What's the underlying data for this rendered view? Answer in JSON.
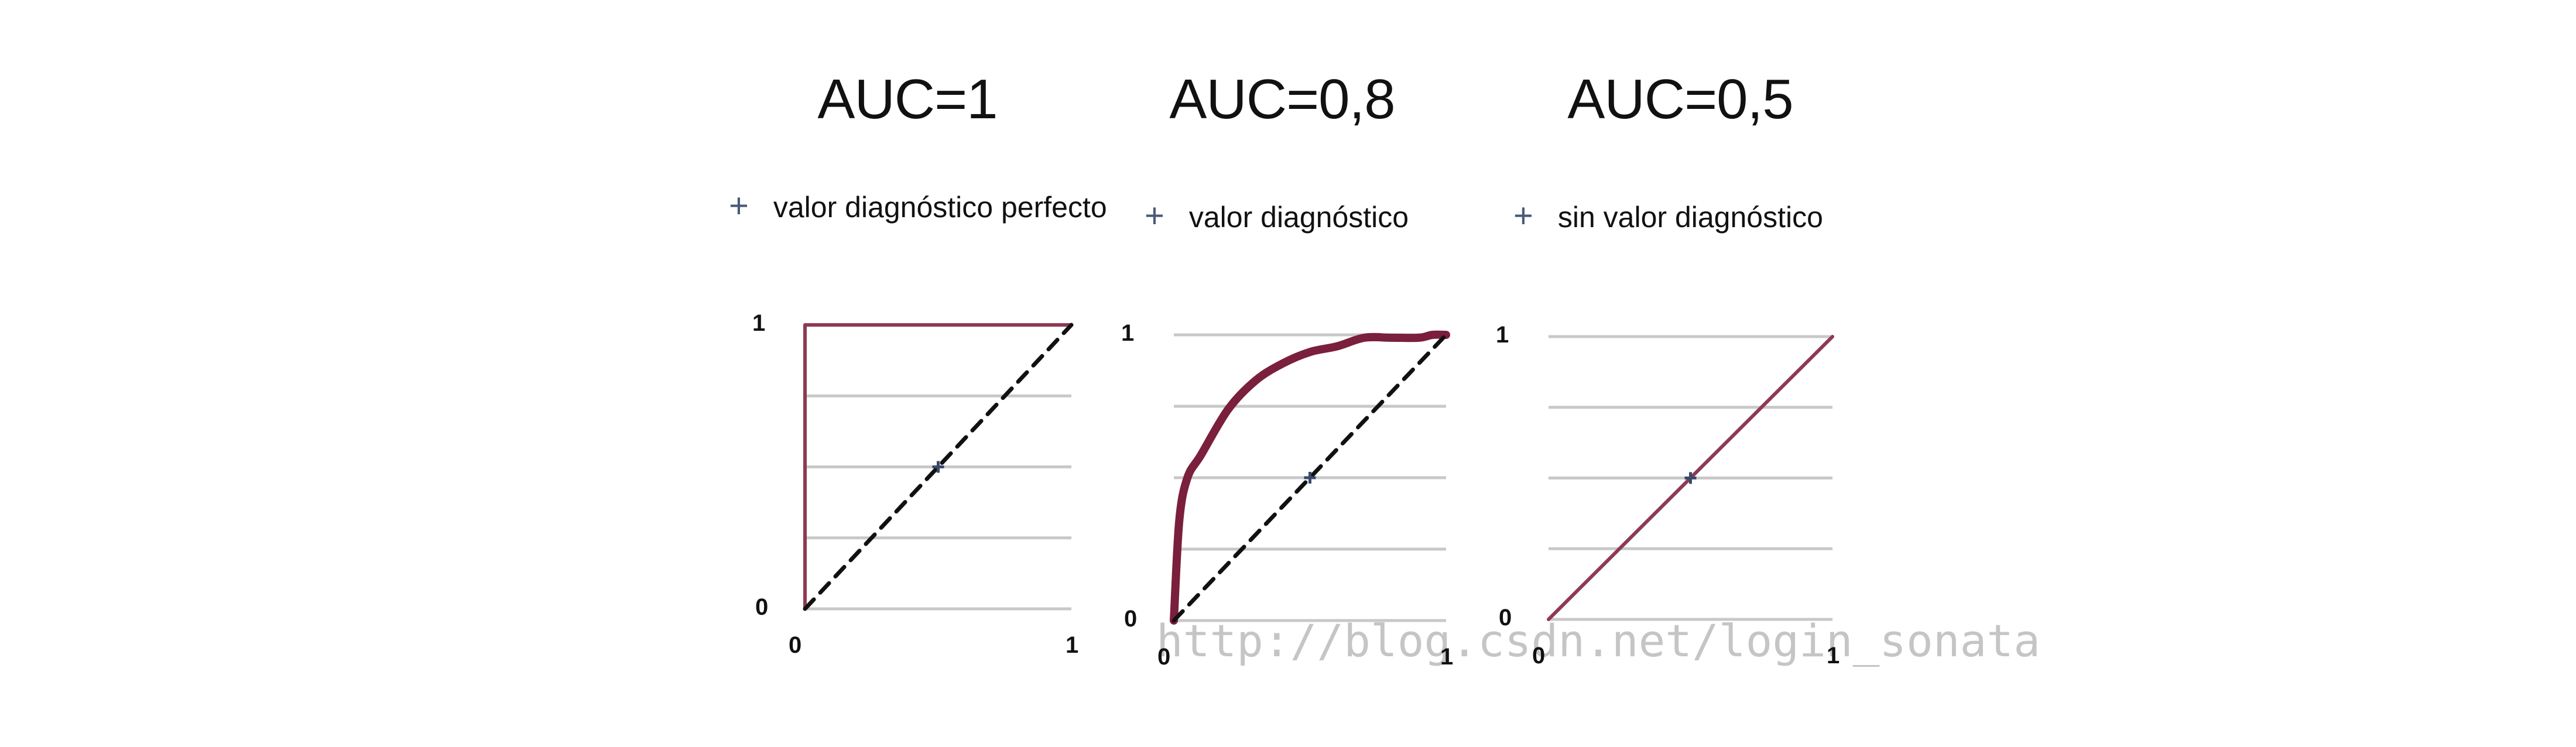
{
  "colors": {
    "curve": "#8e3a52",
    "curve_dark": "#7a1f3c",
    "grid": "#c8c8c8",
    "diagonal": "#111111",
    "plus": "#4a5a78"
  },
  "watermark": "http://blog.csdn.net/login_sonata",
  "chart_data": [
    {
      "type": "line",
      "title": "AUC=1",
      "subtitle": "valor diagnóstico perfecto",
      "xlim": [
        0,
        1
      ],
      "ylim": [
        0,
        1
      ],
      "x_ticks": [
        "0",
        "1"
      ],
      "y_ticks": [
        "0",
        "1"
      ],
      "grid": true,
      "series": [
        {
          "x": [
            0,
            0,
            1
          ],
          "y": [
            0,
            1,
            1
          ]
        },
        {
          "x": [
            0,
            1
          ],
          "y": [
            0,
            1
          ],
          "style": "dashed"
        }
      ]
    },
    {
      "type": "line",
      "title": "AUC=0,8",
      "subtitle": "valor diagnóstico",
      "xlim": [
        0,
        1
      ],
      "ylim": [
        0,
        1
      ],
      "x_ticks": [
        "0",
        "1"
      ],
      "y_ticks": [
        "0",
        "1"
      ],
      "grid": true,
      "series": [
        {
          "x": [
            0,
            0.02,
            0.05,
            0.1,
            0.2,
            0.3,
            0.4,
            0.5,
            0.6,
            0.7,
            0.8,
            0.9,
            0.95,
            1
          ],
          "y": [
            0,
            0.35,
            0.5,
            0.58,
            0.74,
            0.84,
            0.9,
            0.94,
            0.96,
            0.99,
            0.99,
            0.99,
            1,
            1
          ]
        },
        {
          "x": [
            0,
            1
          ],
          "y": [
            0,
            1
          ],
          "style": "dashed"
        }
      ]
    },
    {
      "type": "line",
      "title": "AUC=0,5",
      "subtitle": "sin valor diagnóstico",
      "xlim": [
        0,
        1
      ],
      "ylim": [
        0,
        1
      ],
      "x_ticks": [
        "0",
        "1"
      ],
      "y_ticks": [
        "0",
        "1"
      ],
      "grid": true,
      "series": [
        {
          "x": [
            0,
            1
          ],
          "y": [
            0,
            1
          ]
        }
      ]
    }
  ]
}
